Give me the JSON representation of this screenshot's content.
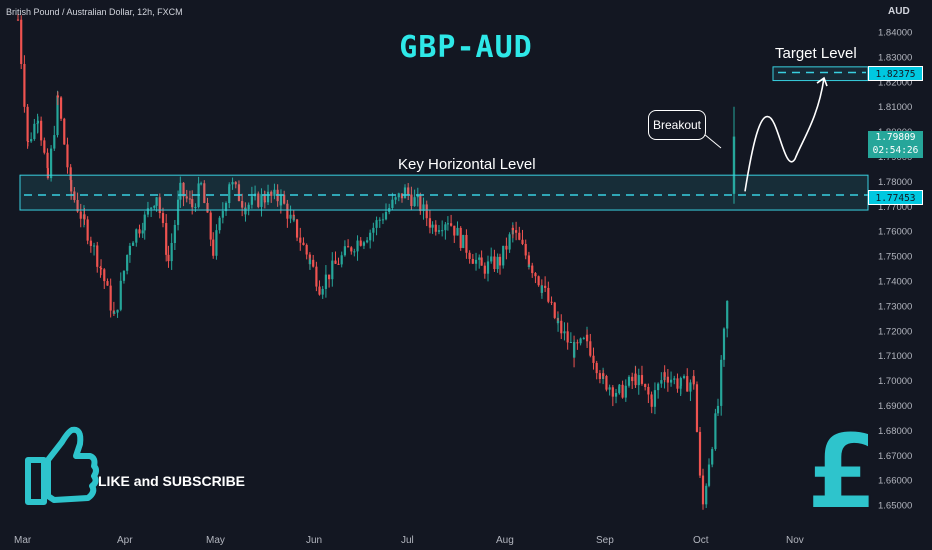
{
  "header": {
    "symbol_title": "British Pound / Australian Dollar, 12h, FXCM",
    "currency": "AUD"
  },
  "annotations": {
    "title": "GBP-AUD",
    "key_level_label": "Key Horizontal Level",
    "target_level_label": "Target Level",
    "breakout_label": "Breakout",
    "like_label": "LIKE and SUBSCRIBE",
    "thumbs_up_icon": "thumbs-up-icon",
    "pound_icon": "pound-sign-icon",
    "pound_symbol": "£"
  },
  "price_tags": {
    "target": "1.82375",
    "current_price": "1.79809",
    "countdown": "02:54:26",
    "key_level": "1.77453"
  },
  "colors": {
    "background": "#131722",
    "accent": "#2ee8e8",
    "up": "#26a69a",
    "down": "#ef5350",
    "zone": "#39d0e0"
  },
  "chart_data": {
    "type": "candlestick",
    "title": "GBP-AUD",
    "x_ticks": [
      "Mar",
      "Apr",
      "May",
      "Jun",
      "Jul",
      "Aug",
      "Sep",
      "Oct",
      "Nov"
    ],
    "y_ticks": [
      1.84,
      1.83,
      1.82,
      1.81,
      1.8,
      1.79,
      1.78,
      1.77,
      1.76,
      1.75,
      1.74,
      1.73,
      1.72,
      1.71,
      1.7,
      1.69,
      1.68,
      1.67,
      1.66,
      1.65
    ],
    "ylim": [
      1.645,
      1.843
    ],
    "y_axis_side": "right",
    "grid": false,
    "key_zone": [
      1.7685,
      1.7825
    ],
    "key_level": 1.77453,
    "target_zone": [
      1.8205,
      1.826
    ],
    "target_level": 1.82375,
    "current_price": 1.79809,
    "anchors": [
      [
        "Mar",
        1.845
      ],
      [
        "Mar 4",
        1.795
      ],
      [
        "Mar 7",
        1.807
      ],
      [
        "Mar 10",
        1.781
      ],
      [
        "Mar 13",
        1.813
      ],
      [
        "Mar 17",
        1.776
      ],
      [
        "Mar 21",
        1.763
      ],
      [
        "Mar 26",
        1.745
      ],
      [
        "Mar 30",
        1.725
      ],
      [
        "Apr 4",
        1.756
      ],
      [
        "Apr 9",
        1.765
      ],
      [
        "Apr 13",
        1.775
      ],
      [
        "Apr 17",
        1.748
      ],
      [
        "Apr 21",
        1.776
      ],
      [
        "Apr 25",
        1.77
      ],
      [
        "Apr 28",
        1.778
      ],
      [
        "May 2",
        1.752
      ],
      [
        "May 7",
        1.78
      ],
      [
        "May 12",
        1.77
      ],
      [
        "May 18",
        1.774
      ],
      [
        "May 23",
        1.773
      ],
      [
        "May 27",
        1.762
      ],
      [
        "Jun 1",
        1.748
      ],
      [
        "Jun 4",
        1.738
      ],
      [
        "Jun 10",
        1.748
      ],
      [
        "Jun 15",
        1.755
      ],
      [
        "Jun 20",
        1.76
      ],
      [
        "Jun 25",
        1.768
      ],
      [
        "Jul 1",
        1.776
      ],
      [
        "Jul 6",
        1.77
      ],
      [
        "Jul 10",
        1.762
      ],
      [
        "Jul 15",
        1.765
      ],
      [
        "Jul 20",
        1.755
      ],
      [
        "Jul 26",
        1.745
      ],
      [
        "Aug 1",
        1.748
      ],
      [
        "Aug 5",
        1.76
      ],
      [
        "Aug 10",
        1.748
      ],
      [
        "Aug 14",
        1.738
      ],
      [
        "Aug 19",
        1.722
      ],
      [
        "Aug 24",
        1.712
      ],
      [
        "Aug 28",
        1.716
      ],
      [
        "Sep 2",
        1.7
      ],
      [
        "Sep 7",
        1.695
      ],
      [
        "Sep 12",
        1.701
      ],
      [
        "Sep 17",
        1.692
      ],
      [
        "Sep 21",
        1.703
      ],
      [
        "Sep 26",
        1.698
      ],
      [
        "Sep 30",
        1.7
      ],
      [
        "Oct 2",
        1.66
      ],
      [
        "Oct 3",
        1.65
      ],
      [
        "Oct 5",
        1.668
      ],
      [
        "Oct 8",
        1.69
      ],
      [
        "Oct 10",
        1.718
      ],
      [
        "Oct 12",
        1.742
      ],
      [
        "Oct 15",
        1.76
      ],
      [
        "Oct 17",
        1.755
      ],
      [
        "Oct 19",
        1.743
      ],
      [
        "Oct 21",
        1.76
      ],
      [
        "Oct 23",
        1.766
      ],
      [
        "Oct 24",
        1.77
      ],
      [
        "Oct 25",
        1.798
      ]
    ],
    "projection": [
      1.776,
      1.806,
      1.789,
      1.8215
    ],
    "breakout_candle": {
      "open": 1.775,
      "close": 1.798,
      "high": 1.81,
      "low": 1.771
    }
  }
}
